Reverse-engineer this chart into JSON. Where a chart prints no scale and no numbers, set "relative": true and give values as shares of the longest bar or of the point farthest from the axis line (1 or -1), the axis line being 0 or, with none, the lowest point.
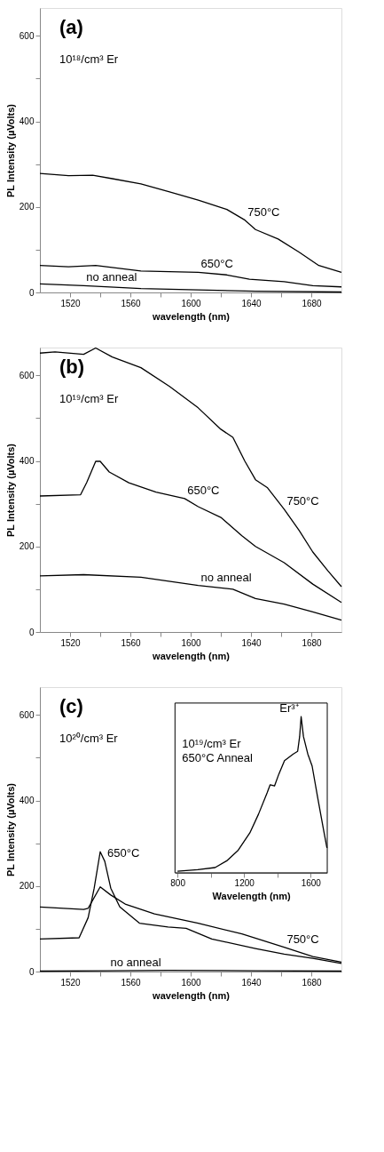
{
  "chart_data": [
    {
      "type": "line",
      "title": "(a)",
      "subtitle": "10¹⁸/cm³ Er",
      "xlabel": "wavelength (nm)",
      "ylabel": "PL Intensity (µVolts)",
      "xlim": [
        1500,
        1700
      ],
      "ylim": [
        0,
        665
      ],
      "xticks": [
        1520,
        {
          "value": 1540,
          "label": null
        },
        1560,
        {
          "value": 1580,
          "label": null
        },
        1600,
        {
          "value": 1620,
          "label": null
        },
        1640,
        {
          "value": 1660,
          "label": null
        },
        1680
      ],
      "yticks": [
        0,
        {
          "value": 100,
          "label": null
        },
        200,
        {
          "value": 300,
          "label": null
        },
        400,
        {
          "value": 500,
          "label": null
        },
        600
      ],
      "grid": false,
      "series": [
        {
          "color": "#000000",
          "x": [
            1500,
            1519,
            1535,
            1548,
            1567,
            1586,
            1605,
            1624,
            1636,
            1643,
            1658,
            1672,
            1685,
            1700
          ],
          "values": [
            278,
            273,
            274,
            266,
            254,
            235,
            216,
            194,
            169,
            147,
            125,
            94,
            63,
            47
          ]
        },
        {
          "color": "#000000",
          "x": [
            1500,
            1519,
            1537,
            1567,
            1605,
            1624,
            1639,
            1662,
            1681,
            1700
          ],
          "values": [
            63,
            60,
            63,
            50,
            47,
            41,
            31,
            25,
            16,
            13
          ]
        },
        {
          "color": "#000000",
          "x": [
            1500,
            1529,
            1567,
            1605,
            1643,
            1700
          ],
          "values": [
            20,
            16,
            9,
            6,
            3,
            1
          ]
        }
      ],
      "annotations": [
        {
          "text": "750°C",
          "x": 1636,
          "y": 169
        },
        {
          "text": "650°C",
          "x": 1605,
          "y": 47
        },
        {
          "text": "no anneal",
          "x": 1529,
          "y": 16
        }
      ]
    },
    {
      "type": "line",
      "title": "(b)",
      "subtitle": "10¹⁹/cm³ Er",
      "xlabel": "wavelength (nm)",
      "ylabel": "PL Intensity (µVolts)",
      "xlim": [
        1500,
        1700
      ],
      "ylim": [
        0,
        665
      ],
      "xticks": [
        1520,
        {
          "value": 1540,
          "label": null
        },
        1560,
        {
          "value": 1580,
          "label": null
        },
        1600,
        {
          "value": 1620,
          "label": null
        },
        1640,
        {
          "value": 1660,
          "label": null
        },
        1680
      ],
      "yticks": [
        0,
        {
          "value": 100,
          "label": null
        },
        200,
        {
          "value": 300,
          "label": null
        },
        400,
        {
          "value": 500,
          "label": null
        },
        600
      ],
      "grid": false,
      "series": [
        {
          "color": "#000000",
          "x": [
            1500,
            1510,
            1529,
            1537,
            1548,
            1567,
            1586,
            1605,
            1620,
            1628,
            1636,
            1643,
            1651,
            1662,
            1672,
            1681,
            1691,
            1700
          ],
          "values": [
            652,
            655,
            649,
            664,
            643,
            618,
            574,
            524,
            474,
            455,
            399,
            356,
            337,
            287,
            237,
            187,
            143,
            106
          ]
        },
        {
          "color": "#000000",
          "x": [
            1500,
            1527,
            1531,
            1537,
            1540,
            1546,
            1559,
            1577,
            1596,
            1605,
            1620,
            1634,
            1643,
            1662,
            1681,
            1700
          ],
          "values": [
            318,
            321,
            349,
            399,
            399,
            374,
            349,
            327,
            312,
            293,
            268,
            225,
            200,
            162,
            112,
            69
          ]
        },
        {
          "color": "#000000",
          "x": [
            1500,
            1529,
            1567,
            1605,
            1628,
            1643,
            1662,
            1681,
            1700
          ],
          "values": [
            131,
            134,
            128,
            109,
            100,
            78,
            65,
            47,
            28
          ]
        }
      ],
      "annotations": [
        {
          "text": "750°C",
          "x": 1662,
          "y": 287
        },
        {
          "text": "650°C",
          "x": 1596,
          "y": 312
        },
        {
          "text": "no anneal",
          "x": 1605,
          "y": 109
        }
      ]
    },
    {
      "type": "line",
      "title": "(c)",
      "subtitle": "10²⁰/cm³ Er",
      "xlabel": "wavelength (nm)",
      "ylabel": "PL Intensity (µVolts)",
      "xlim": [
        1500,
        1700
      ],
      "ylim": [
        0,
        665
      ],
      "xticks": [
        1520,
        {
          "value": 1540,
          "label": null
        },
        1560,
        {
          "value": 1580,
          "label": null
        },
        1600,
        {
          "value": 1620,
          "label": null
        },
        1640,
        {
          "value": 1660,
          "label": null
        },
        1680
      ],
      "yticks": [
        0,
        {
          "value": 100,
          "label": null
        },
        200,
        {
          "value": 300,
          "label": null
        },
        400,
        {
          "value": 500,
          "label": null
        },
        600
      ],
      "grid": false,
      "series": [
        {
          "color": "#000000",
          "x": [
            1500,
            1526,
            1532,
            1536,
            1540,
            1543,
            1547,
            1553,
            1566,
            1585,
            1597,
            1614,
            1643,
            1662,
            1681,
            1700
          ],
          "values": [
            76,
            79,
            126,
            195,
            280,
            258,
            195,
            151,
            113,
            104,
            101,
            76,
            54,
            41,
            31,
            19
          ]
        },
        {
          "color": "#000000",
          "x": [
            1500,
            1529,
            1532,
            1540,
            1547,
            1557,
            1576,
            1605,
            1634,
            1662,
            1681,
            1700
          ],
          "values": [
            151,
            145,
            148,
            198,
            179,
            157,
            135,
            113,
            88,
            57,
            35,
            22
          ]
        },
        {
          "color": "#000000",
          "x": [
            1500,
            1545,
            1585,
            1643,
            1700
          ],
          "values": [
            1,
            2,
            3,
            2,
            1
          ]
        }
      ],
      "annotations": [
        {
          "text": "650°C",
          "x": 1543,
          "y": 258
        },
        {
          "text": "750°C",
          "x": 1662,
          "y": 57
        },
        {
          "text": "no anneal",
          "x": 1545,
          "y": 2
        }
      ]
    },
    {
      "type": "line",
      "relative": true,
      "title": "10¹⁹/cm³ Er",
      "subtitle": "650°C Anneal",
      "xlabel": "Wavelength (nm)",
      "xlim": [
        785,
        1700
      ],
      "xticks": [
        800,
        {
          "value": 1000,
          "label": null
        },
        1200,
        {
          "value": 1400,
          "label": null
        },
        1600
      ],
      "grid": false,
      "series": [
        {
          "color": "#000000",
          "x": [
            800,
            922,
            1026,
            1096,
            1165,
            1235,
            1287,
            1339,
            1357,
            1383,
            1409,
            1443,
            1496,
            1522,
            1534,
            1543,
            1557,
            1583,
            1609,
            1643,
            1678,
            1698
          ],
          "values": [
            0.01,
            0.02,
            0.034,
            0.077,
            0.145,
            0.256,
            0.376,
            0.513,
            0.564,
            0.556,
            0.632,
            0.718,
            0.761,
            0.778,
            0.872,
            1.0,
            0.872,
            0.761,
            0.684,
            0.479,
            0.274,
            0.16
          ]
        }
      ],
      "annotations": [
        {
          "text": "Er³⁺",
          "x": 1543,
          "y": 1.0
        }
      ]
    }
  ]
}
